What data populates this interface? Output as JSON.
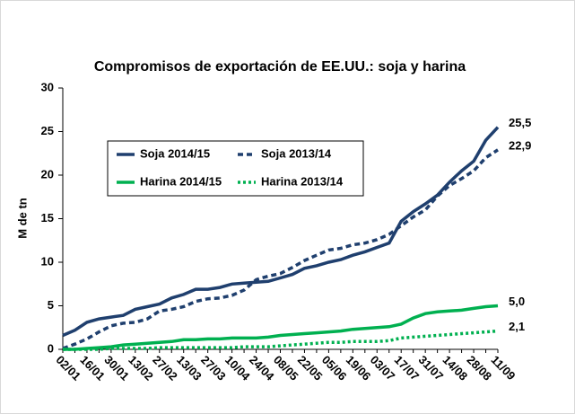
{
  "chart_data": {
    "type": "line",
    "title": "Compromisos de exportación de EE.UU.: soja y harina",
    "y_label": "M de tn",
    "categories": [
      "02/01",
      null,
      "16/01",
      null,
      "30/01",
      null,
      "13/02",
      null,
      "27/02",
      null,
      "13/03",
      null,
      "27/03",
      null,
      "10/04",
      null,
      "24/04",
      null,
      "08/05",
      null,
      "22/05",
      null,
      "05/06",
      null,
      "19/06",
      null,
      "03/07",
      null,
      "17/07",
      null,
      "31/07",
      null,
      "14/08",
      null,
      "28/08",
      null,
      "11/09"
    ],
    "ylim": [
      0,
      30
    ],
    "yticks": [
      0,
      5,
      10,
      15,
      20,
      25,
      30
    ],
    "grid": false,
    "series": [
      {
        "name": "Soja 2014/15",
        "color": "#1f3f6e",
        "dash": "solid",
        "values": [
          1.6,
          2.2,
          3.1,
          3.5,
          3.7,
          3.9,
          4.6,
          4.9,
          5.2,
          5.9,
          6.3,
          6.9,
          6.9,
          7.1,
          7.5,
          7.6,
          7.7,
          7.8,
          8.2,
          8.6,
          9.3,
          9.6,
          10.0,
          10.3,
          10.8,
          11.2,
          11.7,
          12.2,
          14.7,
          15.8,
          16.7,
          17.7,
          19.2,
          20.5,
          21.6,
          24.0,
          25.5
        ],
        "value_labels": [
          null,
          null,
          null,
          null,
          null,
          null,
          null,
          null,
          null,
          null,
          null,
          null,
          null,
          null,
          null,
          null,
          null,
          null,
          null,
          null,
          null,
          null,
          null,
          null,
          null,
          null,
          null,
          null,
          null,
          null,
          null,
          null,
          null,
          null,
          null,
          null,
          "25,5"
        ]
      },
      {
        "name": "Soja 2013/14",
        "color": "#1f3f6e",
        "dash": "dashed",
        "values": [
          0.1,
          0.6,
          1.2,
          2.0,
          2.7,
          3.0,
          3.1,
          3.5,
          4.4,
          4.6,
          4.9,
          5.5,
          5.8,
          5.9,
          6.2,
          6.8,
          8.0,
          8.4,
          8.7,
          9.4,
          10.2,
          10.8,
          11.4,
          11.6,
          12.0,
          12.2,
          12.6,
          13.2,
          14.2,
          15.2,
          16.0,
          17.6,
          18.8,
          19.6,
          20.5,
          22.0,
          22.9
        ],
        "value_labels": [
          null,
          null,
          null,
          null,
          null,
          null,
          null,
          null,
          null,
          null,
          null,
          null,
          null,
          null,
          null,
          null,
          null,
          null,
          null,
          null,
          null,
          null,
          null,
          null,
          null,
          null,
          null,
          null,
          null,
          null,
          null,
          null,
          null,
          null,
          null,
          null,
          "22,9"
        ]
      },
      {
        "name": "Harina 2014/15",
        "color": "#00b050",
        "dash": "solid",
        "values": [
          0,
          0,
          0.1,
          0.2,
          0.3,
          0.5,
          0.6,
          0.7,
          0.8,
          0.9,
          1.1,
          1.1,
          1.2,
          1.2,
          1.3,
          1.3,
          1.3,
          1.4,
          1.6,
          1.7,
          1.8,
          1.9,
          2.0,
          2.1,
          2.3,
          2.4,
          2.5,
          2.6,
          2.9,
          3.6,
          4.1,
          4.3,
          4.4,
          4.5,
          4.7,
          4.9,
          5.0
        ],
        "value_labels": [
          null,
          null,
          null,
          null,
          null,
          null,
          null,
          null,
          null,
          null,
          null,
          null,
          null,
          null,
          null,
          null,
          null,
          null,
          null,
          null,
          null,
          null,
          null,
          null,
          null,
          null,
          null,
          null,
          null,
          null,
          null,
          null,
          null,
          null,
          null,
          null,
          "5,0"
        ]
      },
      {
        "name": "Harina 2013/14",
        "color": "#00b050",
        "dash": "dotted",
        "values": [
          0,
          0,
          0,
          0,
          0.1,
          0.1,
          0.1,
          0.1,
          0.2,
          0.2,
          0.2,
          0.2,
          0.2,
          0.2,
          0.2,
          0.3,
          0.3,
          0.3,
          0.4,
          0.5,
          0.6,
          0.7,
          0.8,
          0.8,
          0.9,
          0.9,
          0.9,
          1.0,
          1.3,
          1.4,
          1.5,
          1.6,
          1.7,
          1.8,
          1.9,
          2.0,
          2.1
        ],
        "value_labels": [
          null,
          null,
          null,
          null,
          null,
          null,
          null,
          null,
          null,
          null,
          null,
          null,
          null,
          null,
          null,
          null,
          null,
          null,
          null,
          null,
          null,
          null,
          null,
          null,
          null,
          null,
          null,
          null,
          null,
          null,
          null,
          null,
          null,
          null,
          null,
          null,
          "2,1"
        ]
      }
    ]
  }
}
